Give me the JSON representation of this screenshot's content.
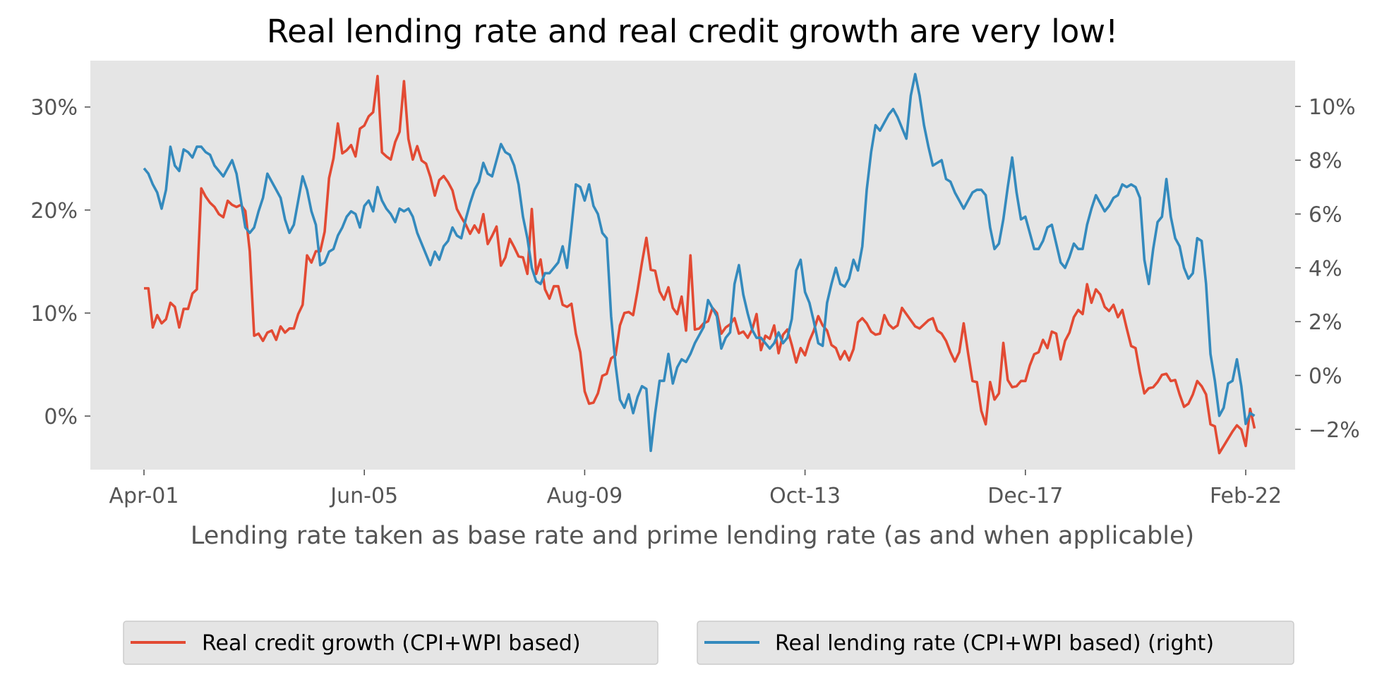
{
  "chart_data": {
    "type": "line",
    "title": "Real lending rate and real credit growth are very low!",
    "xlabel": "Lending rate taken as base rate and prime lending rate (as and when applicable)",
    "x_tick_labels": [
      "Apr-01",
      "Jun-05",
      "Aug-09",
      "Oct-13",
      "Dec-17",
      "Feb-22"
    ],
    "x_range": [
      "2001-04",
      "2022-02"
    ],
    "y_left": {
      "ticks": [
        "0%",
        "10%",
        "20%",
        "30%"
      ],
      "ylim": [
        -5.2,
        34.5
      ]
    },
    "y_right": {
      "ticks": [
        "−2%",
        "0%",
        "2%",
        "4%",
        "6%",
        "8%",
        "10%"
      ],
      "ylim": [
        -3.5,
        11.7
      ]
    },
    "grid": false,
    "legend_placement": "bottom",
    "colors": {
      "background": "#e5e5e5",
      "credit": "#e24a33",
      "lending": "#348abd"
    },
    "series": [
      {
        "name": "Real credit growth (CPI+WPI based)",
        "axis": "left",
        "color": "#e24a33",
        "start": "2001-04",
        "step_months": 1,
        "values": [
          12.4,
          12.4,
          8.6,
          9.8,
          9.0,
          9.4,
          11.0,
          10.6,
          8.6,
          10.4,
          10.4,
          11.9,
          12.3,
          22.1,
          21.3,
          20.7,
          20.3,
          19.6,
          19.3,
          20.9,
          20.5,
          20.3,
          20.5,
          19.9,
          16.0,
          7.8,
          8.0,
          7.3,
          8.1,
          8.3,
          7.4,
          8.7,
          8.1,
          8.5,
          8.5,
          9.9,
          10.8,
          15.6,
          14.9,
          16.0,
          16.0,
          17.9,
          23.1,
          25.0,
          28.4,
          25.5,
          25.8,
          26.3,
          25.2,
          27.9,
          28.2,
          29.1,
          29.5,
          33.0,
          25.6,
          25.2,
          24.9,
          26.6,
          27.6,
          32.5,
          26.9,
          24.9,
          26.2,
          24.8,
          24.5,
          23.2,
          21.4,
          22.9,
          23.3,
          22.7,
          21.9,
          20.1,
          19.3,
          18.6,
          17.7,
          18.5,
          17.8,
          19.6,
          16.7,
          17.5,
          18.4,
          14.6,
          15.4,
          17.2,
          16.4,
          15.5,
          15.4,
          13.8,
          20.1,
          13.8,
          15.2,
          12.3,
          11.4,
          12.6,
          12.6,
          10.8,
          10.6,
          10.9,
          8.0,
          6.2,
          2.4,
          1.2,
          1.3,
          2.2,
          3.9,
          4.1,
          5.6,
          5.9,
          8.8,
          10.0,
          10.1,
          9.8,
          12.2,
          14.9,
          17.3,
          14.2,
          14.1,
          12.1,
          11.3,
          12.5,
          10.5,
          9.9,
          11.6,
          8.3,
          15.6,
          8.4,
          8.5,
          9.0,
          9.2,
          10.5,
          10.0,
          8.0,
          8.6,
          8.9,
          9.5,
          8.0,
          8.2,
          7.6,
          8.4,
          9.9,
          6.4,
          7.8,
          7.5,
          8.8,
          6.1,
          7.9,
          8.4,
          6.9,
          5.2,
          6.6,
          5.9,
          7.3,
          8.3,
          9.7,
          8.8,
          8.3,
          6.9,
          6.6,
          5.5,
          6.3,
          5.4,
          6.5,
          9.1,
          9.5,
          9.0,
          8.2,
          7.9,
          8.0,
          9.8,
          8.9,
          8.5,
          8.8,
          10.5,
          9.9,
          9.3,
          8.7,
          8.5,
          8.9,
          9.3,
          9.5,
          8.3,
          8.0,
          7.3,
          6.2,
          5.3,
          6.2,
          9.0,
          6.1,
          3.4,
          3.3,
          0.5,
          -0.8,
          3.3,
          1.6,
          2.2,
          7.1,
          3.5,
          2.8,
          2.9,
          3.4,
          3.4,
          4.9,
          6.0,
          6.2,
          7.4,
          6.6,
          8.2,
          8.0,
          5.5,
          7.3,
          8.1,
          9.6,
          10.3,
          9.9,
          12.8,
          11.0,
          12.3,
          11.8,
          10.6,
          10.2,
          10.8,
          9.6,
          10.3,
          8.5,
          6.8,
          6.6,
          4.2,
          2.2,
          2.7,
          2.8,
          3.3,
          4.0,
          4.1,
          3.4,
          3.5,
          2.1,
          0.9,
          1.2,
          2.1,
          3.4,
          2.9,
          2.1,
          -0.8,
          -1.0,
          -3.6,
          -2.9,
          -2.2,
          -1.5,
          -0.9,
          -1.3,
          -2.9,
          0.7,
          -1.2
        ]
      },
      {
        "name": "Real lending rate (CPI+WPI based) (right)",
        "axis": "right",
        "color": "#348abd",
        "start": "2001-04",
        "step_months": 1,
        "values": [
          7.7,
          7.5,
          7.1,
          6.8,
          6.2,
          6.9,
          8.5,
          7.8,
          7.6,
          8.4,
          8.3,
          8.1,
          8.5,
          8.5,
          8.3,
          8.2,
          7.8,
          7.6,
          7.4,
          7.7,
          8.0,
          7.5,
          6.5,
          5.5,
          5.3,
          5.5,
          6.1,
          6.6,
          7.5,
          7.2,
          6.9,
          6.6,
          5.8,
          5.3,
          5.6,
          6.5,
          7.4,
          6.9,
          6.1,
          5.6,
          4.1,
          4.2,
          4.6,
          4.7,
          5.2,
          5.5,
          5.9,
          6.1,
          6.0,
          5.5,
          6.3,
          6.5,
          6.1,
          7.0,
          6.5,
          6.2,
          6.0,
          5.7,
          6.2,
          6.1,
          6.2,
          5.9,
          5.3,
          4.9,
          4.5,
          4.1,
          4.6,
          4.3,
          4.8,
          5.0,
          5.5,
          5.2,
          5.1,
          5.8,
          6.4,
          6.9,
          7.2,
          7.9,
          7.5,
          7.4,
          8.0,
          8.6,
          8.3,
          8.2,
          7.8,
          7.1,
          5.9,
          5.1,
          4.0,
          3.5,
          3.4,
          3.8,
          3.8,
          4.0,
          4.2,
          4.8,
          4.0,
          5.5,
          7.1,
          7.0,
          6.5,
          7.1,
          6.3,
          6.0,
          5.3,
          5.1,
          2.2,
          0.4,
          -0.9,
          -1.2,
          -0.7,
          -1.4,
          -0.8,
          -0.4,
          -0.5,
          -2.8,
          -1.4,
          -0.2,
          -0.2,
          0.8,
          -0.3,
          0.3,
          0.6,
          0.5,
          0.8,
          1.2,
          1.5,
          1.8,
          2.8,
          2.5,
          2.2,
          1.0,
          1.4,
          1.6,
          3.4,
          4.1,
          3.0,
          2.3,
          1.7,
          1.4,
          1.4,
          1.2,
          1.0,
          1.2,
          1.6,
          1.2,
          1.4,
          2.1,
          3.9,
          4.3,
          3.1,
          2.7,
          2.0,
          1.2,
          1.1,
          2.7,
          3.4,
          4.0,
          3.4,
          3.3,
          3.6,
          4.3,
          3.9,
          4.8,
          6.9,
          8.3,
          9.3,
          9.1,
          9.4,
          9.7,
          9.9,
          9.6,
          9.2,
          8.8,
          10.4,
          11.2,
          10.4,
          9.3,
          8.5,
          7.8,
          7.9,
          8.0,
          7.3,
          7.2,
          6.8,
          6.5,
          6.2,
          6.5,
          6.8,
          6.9,
          6.9,
          6.7,
          5.5,
          4.7,
          4.9,
          5.8,
          7.0,
          8.1,
          6.8,
          5.8,
          5.9,
          5.3,
          4.7,
          4.7,
          5.0,
          5.5,
          5.6,
          4.9,
          4.2,
          4.0,
          4.4,
          4.9,
          4.7,
          4.7,
          5.6,
          6.2,
          6.7,
          6.4,
          6.1,
          6.3,
          6.6,
          6.7,
          7.1,
          7.0,
          7.1,
          7.0,
          6.6,
          4.3,
          3.4,
          4.7,
          5.7,
          5.9,
          7.3,
          5.9,
          5.1,
          4.8,
          4.0,
          3.6,
          3.8,
          5.1,
          5.0,
          3.4,
          0.8,
          -0.2,
          -1.5,
          -1.2,
          -0.3,
          -0.2,
          0.6,
          -0.4,
          -1.8,
          -1.4,
          -1.5
        ]
      }
    ]
  }
}
